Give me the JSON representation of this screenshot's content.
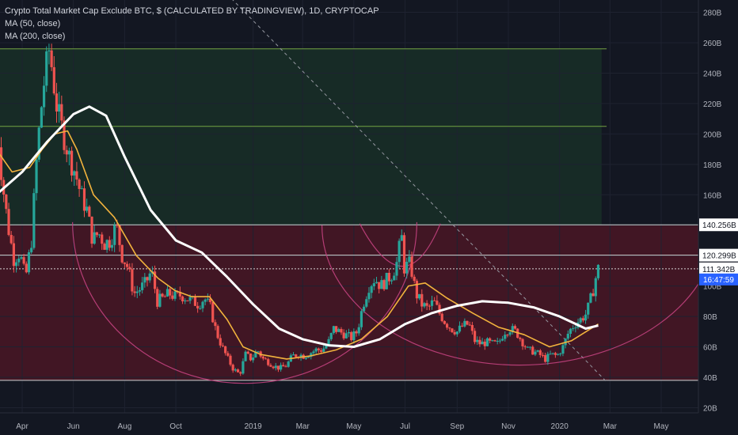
{
  "legend": {
    "title": "Crypto Total Market Cap Exclude BTC, $ (CALCULATED BY TRADINGVIEW), 1D, CRYPTOCAP",
    "ma50": "MA (50, close)",
    "ma200": "MA (200, close)"
  },
  "colors": {
    "background": "#131722",
    "candle_up": "#26a69a",
    "candle_down": "#ef5350",
    "ma50": "#f2b33d",
    "ma200": "#ffffff",
    "resistance_green": "#8bc34a",
    "cup_pink": "#c2417e",
    "price_tag_blue": "#2962ff"
  },
  "chart_data": {
    "type": "candlestick",
    "title": "Crypto Total Market Cap Exclude BTC, $ (CALCULATED BY TRADINGVIEW), 1D, CRYPTOCAP",
    "x_range": [
      "2018-03-01",
      "2020-06-01"
    ],
    "ylim": [
      10,
      290
    ],
    "y_unit": "B",
    "y_tick_labels": [
      "20B",
      "40B",
      "60B",
      "80B",
      "100B",
      "120B",
      "140B",
      "160B",
      "180B",
      "200B",
      "220B",
      "240B",
      "260B",
      "280B"
    ],
    "x_tick_labels": [
      "Apr",
      "Jun",
      "Aug",
      "Oct",
      "2019",
      "Mar",
      "May",
      "Jul",
      "Sep",
      "Nov",
      "2020",
      "Mar",
      "May"
    ],
    "price_path": [
      [
        "2018-03-01",
        215
      ],
      [
        "2018-03-08",
        170
      ],
      [
        "2018-03-15",
        140
      ],
      [
        "2018-03-22",
        118
      ],
      [
        "2018-03-29",
        122
      ],
      [
        "2018-04-05",
        105
      ],
      [
        "2018-04-12",
        130
      ],
      [
        "2018-04-19",
        190
      ],
      [
        "2018-04-26",
        230
      ],
      [
        "2018-05-03",
        255
      ],
      [
        "2018-05-06",
        245
      ],
      [
        "2018-05-13",
        215
      ],
      [
        "2018-05-20",
        200
      ],
      [
        "2018-05-27",
        185
      ],
      [
        "2018-06-03",
        175
      ],
      [
        "2018-06-10",
        160
      ],
      [
        "2018-06-17",
        150
      ],
      [
        "2018-06-24",
        130
      ],
      [
        "2018-07-01",
        135
      ],
      [
        "2018-07-08",
        128
      ],
      [
        "2018-07-15",
        130
      ],
      [
        "2018-07-22",
        140
      ],
      [
        "2018-07-29",
        120
      ],
      [
        "2018-08-05",
        112
      ],
      [
        "2018-08-12",
        95
      ],
      [
        "2018-08-19",
        98
      ],
      [
        "2018-08-26",
        102
      ],
      [
        "2018-09-02",
        110
      ],
      [
        "2018-09-09",
        90
      ],
      [
        "2018-09-16",
        92
      ],
      [
        "2018-09-23",
        95
      ],
      [
        "2018-09-30",
        93
      ],
      [
        "2018-10-07",
        94
      ],
      [
        "2018-10-14",
        92
      ],
      [
        "2018-10-21",
        90
      ],
      [
        "2018-10-28",
        88
      ],
      [
        "2018-11-04",
        92
      ],
      [
        "2018-11-11",
        86
      ],
      [
        "2018-11-18",
        70
      ],
      [
        "2018-11-25",
        60
      ],
      [
        "2018-12-02",
        52
      ],
      [
        "2018-12-09",
        45
      ],
      [
        "2018-12-16",
        42
      ],
      [
        "2018-12-23",
        55
      ],
      [
        "2018-12-30",
        52
      ],
      [
        "2019-01-06",
        58
      ],
      [
        "2019-01-13",
        52
      ],
      [
        "2019-01-20",
        50
      ],
      [
        "2019-01-27",
        47
      ],
      [
        "2019-02-03",
        46
      ],
      [
        "2019-02-10",
        48
      ],
      [
        "2019-02-17",
        54
      ],
      [
        "2019-02-24",
        55
      ],
      [
        "2019-03-03",
        54
      ],
      [
        "2019-03-10",
        56
      ],
      [
        "2019-03-17",
        58
      ],
      [
        "2019-03-24",
        58
      ],
      [
        "2019-03-31",
        62
      ],
      [
        "2019-04-07",
        72
      ],
      [
        "2019-04-14",
        70
      ],
      [
        "2019-04-21",
        68
      ],
      [
        "2019-04-28",
        66
      ],
      [
        "2019-05-05",
        70
      ],
      [
        "2019-05-12",
        88
      ],
      [
        "2019-05-19",
        100
      ],
      [
        "2019-05-26",
        105
      ],
      [
        "2019-06-02",
        100
      ],
      [
        "2019-06-09",
        104
      ],
      [
        "2019-06-16",
        108
      ],
      [
        "2019-06-23",
        118
      ],
      [
        "2019-06-26",
        138
      ],
      [
        "2019-06-30",
        112
      ],
      [
        "2019-07-07",
        115
      ],
      [
        "2019-07-14",
        95
      ],
      [
        "2019-07-21",
        88
      ],
      [
        "2019-07-28",
        85
      ],
      [
        "2019-08-04",
        90
      ],
      [
        "2019-08-11",
        82
      ],
      [
        "2019-08-18",
        76
      ],
      [
        "2019-08-25",
        72
      ],
      [
        "2019-09-01",
        70
      ],
      [
        "2019-09-08",
        74
      ],
      [
        "2019-09-15",
        75
      ],
      [
        "2019-09-22",
        64
      ],
      [
        "2019-09-29",
        62
      ],
      [
        "2019-10-06",
        63
      ],
      [
        "2019-10-13",
        62
      ],
      [
        "2019-10-20",
        62
      ],
      [
        "2019-10-27",
        70
      ],
      [
        "2019-11-03",
        72
      ],
      [
        "2019-11-10",
        70
      ],
      [
        "2019-11-17",
        64
      ],
      [
        "2019-11-24",
        58
      ],
      [
        "2019-12-01",
        57
      ],
      [
        "2019-12-08",
        55
      ],
      [
        "2019-12-15",
        52
      ],
      [
        "2019-12-22",
        55
      ],
      [
        "2019-12-29",
        54
      ],
      [
        "2020-01-05",
        60
      ],
      [
        "2020-01-12",
        70
      ],
      [
        "2020-01-19",
        75
      ],
      [
        "2020-01-26",
        78
      ],
      [
        "2020-02-02",
        82
      ],
      [
        "2020-02-09",
        95
      ],
      [
        "2020-02-14",
        108
      ],
      [
        "2020-02-16",
        111.342
      ]
    ],
    "series": [
      {
        "name": "MA (50, close)",
        "color": "#f2b33d",
        "points": [
          [
            "2018-03-01",
            190
          ],
          [
            "2018-03-20",
            175
          ],
          [
            "2018-04-10",
            178
          ],
          [
            "2018-04-25",
            190
          ],
          [
            "2018-05-10",
            200
          ],
          [
            "2018-05-25",
            202
          ],
          [
            "2018-06-05",
            190
          ],
          [
            "2018-06-25",
            160
          ],
          [
            "2018-07-20",
            145
          ],
          [
            "2018-08-15",
            120
          ],
          [
            "2018-09-10",
            105
          ],
          [
            "2018-09-30",
            97
          ],
          [
            "2018-10-20",
            93
          ],
          [
            "2018-11-10",
            93
          ],
          [
            "2018-12-01",
            78
          ],
          [
            "2018-12-20",
            60
          ],
          [
            "2019-01-10",
            55
          ],
          [
            "2019-02-10",
            52
          ],
          [
            "2019-03-10",
            54
          ],
          [
            "2019-04-10",
            58
          ],
          [
            "2019-05-10",
            65
          ],
          [
            "2019-06-10",
            80
          ],
          [
            "2019-07-05",
            100
          ],
          [
            "2019-07-25",
            102
          ],
          [
            "2019-08-20",
            92
          ],
          [
            "2019-09-20",
            82
          ],
          [
            "2019-10-20",
            73
          ],
          [
            "2019-11-20",
            68
          ],
          [
            "2019-12-20",
            60
          ],
          [
            "2020-01-15",
            64
          ],
          [
            "2020-02-16",
            75
          ]
        ]
      },
      {
        "name": "MA (200, close)",
        "color": "#ffffff",
        "points": [
          [
            "2018-03-01",
            160
          ],
          [
            "2018-04-01",
            175
          ],
          [
            "2018-05-01",
            195
          ],
          [
            "2018-06-01",
            213
          ],
          [
            "2018-06-20",
            218
          ],
          [
            "2018-07-10",
            212
          ],
          [
            "2018-08-01",
            185
          ],
          [
            "2018-09-01",
            150
          ],
          [
            "2018-10-01",
            130
          ],
          [
            "2018-11-01",
            122
          ],
          [
            "2018-12-01",
            106
          ],
          [
            "2019-01-01",
            88
          ],
          [
            "2019-02-01",
            72
          ],
          [
            "2019-03-01",
            65
          ],
          [
            "2019-04-01",
            61
          ],
          [
            "2019-05-01",
            60
          ],
          [
            "2019-06-01",
            65
          ],
          [
            "2019-07-01",
            75
          ],
          [
            "2019-08-01",
            82
          ],
          [
            "2019-09-01",
            87
          ],
          [
            "2019-10-01",
            90
          ],
          [
            "2019-11-01",
            89
          ],
          [
            "2019-12-01",
            86
          ],
          [
            "2020-01-01",
            80
          ],
          [
            "2020-02-01",
            72
          ],
          [
            "2020-02-16",
            74
          ]
        ]
      }
    ],
    "horizontal_lines": [
      {
        "label": "",
        "value": 256,
        "color": "#8bc34a"
      },
      {
        "label": "",
        "value": 205,
        "color": "#8bc34a"
      },
      {
        "label": "140.256B",
        "value": 140.256,
        "color": "#ffffff"
      },
      {
        "label": "120.299B",
        "value": 120.299,
        "color": "#ffffff"
      },
      {
        "label": "111.342B",
        "value": 111.342,
        "color": "#ffffff"
      },
      {
        "label": "",
        "value": 38,
        "color": "#ffffff"
      }
    ],
    "last_price": "111.342B",
    "countdown": "16:47:59",
    "grid": true
  }
}
